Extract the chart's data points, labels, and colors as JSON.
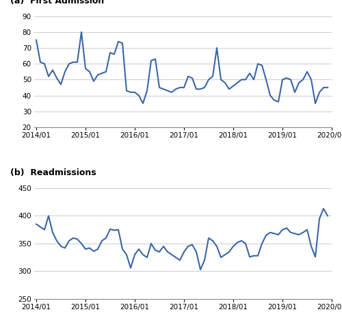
{
  "first_admission": [
    75,
    61,
    60,
    52,
    56,
    51,
    47,
    55,
    60,
    61,
    61,
    80,
    57,
    55,
    49,
    53,
    54,
    55,
    67,
    66,
    74,
    73,
    43,
    42,
    42,
    40,
    35,
    43,
    62,
    63,
    45,
    44,
    43,
    42,
    44,
    45,
    45,
    52,
    51,
    44,
    44,
    45,
    50,
    52,
    70,
    50,
    48,
    44,
    46,
    48,
    50,
    50,
    54,
    50,
    60,
    59,
    50,
    40,
    37,
    36,
    50,
    51,
    50,
    42,
    48,
    50,
    55,
    50,
    35,
    42,
    45,
    45
  ],
  "readmissions": [
    385,
    380,
    375,
    400,
    370,
    355,
    345,
    342,
    355,
    360,
    358,
    350,
    340,
    342,
    336,
    340,
    355,
    360,
    376,
    374,
    375,
    340,
    330,
    306,
    330,
    340,
    330,
    325,
    350,
    338,
    335,
    345,
    335,
    330,
    325,
    320,
    335,
    345,
    348,
    335,
    303,
    320,
    360,
    355,
    345,
    325,
    330,
    335,
    345,
    352,
    355,
    350,
    326,
    328,
    328,
    350,
    365,
    370,
    368,
    366,
    375,
    378,
    370,
    368,
    366,
    370,
    375,
    345,
    326,
    395,
    413,
    400
  ],
  "x_ticks": [
    "2014/01",
    "2015/01",
    "2016/01",
    "2017/01",
    "2018/01",
    "2019/01",
    "2020/01"
  ],
  "panel_a_title": "(a)  First Admission",
  "panel_b_title": "(b)  Readmissions",
  "ylim_a": [
    20,
    90
  ],
  "ylim_b": [
    250,
    450
  ],
  "yticks_a": [
    20,
    30,
    40,
    50,
    60,
    70,
    80,
    90
  ],
  "yticks_b": [
    250,
    300,
    350,
    400,
    450
  ],
  "line_color": "#3A66A7",
  "line_width": 1.5,
  "grid_color": "#CCCCCC",
  "background_color": "#FFFFFF"
}
